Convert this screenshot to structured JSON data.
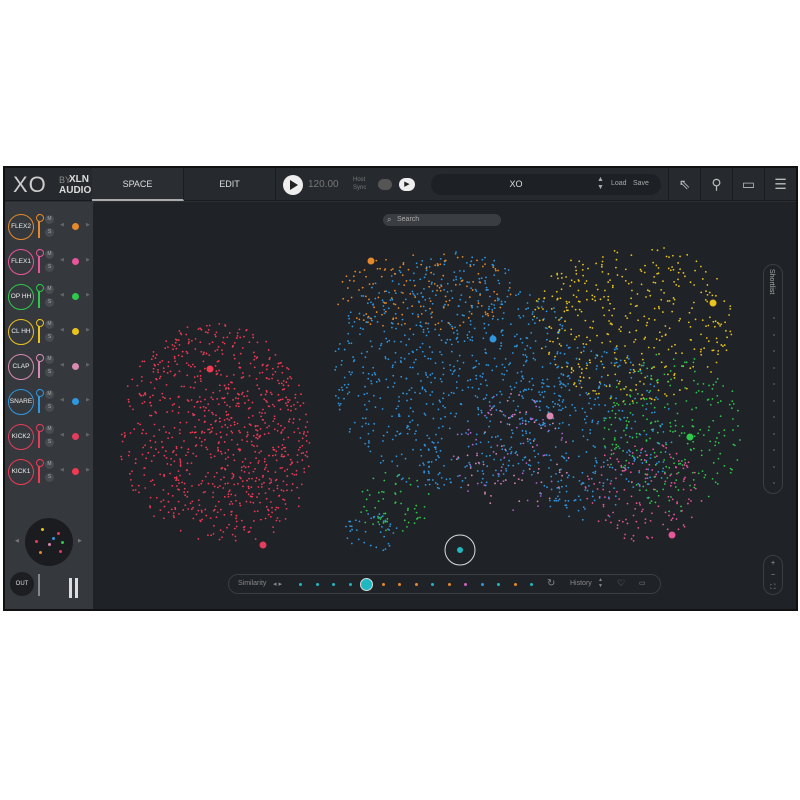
{
  "header": {
    "logo": {
      "mark": "XO",
      "by": "BY",
      "brand": "XLN",
      "brand2": "AUDIO"
    },
    "tabs": [
      {
        "label": "SPACE",
        "active": true
      },
      {
        "label": "EDIT",
        "active": false
      }
    ],
    "tempo": "120.00",
    "host_sync_label": "Host Sync",
    "preset": {
      "name": "XO",
      "load": "Load",
      "save": "Save"
    },
    "icons": [
      "arrow-up-left-icon",
      "search-icon",
      "folder-icon",
      "menu-icon"
    ]
  },
  "tracks": [
    {
      "label": "FLEX2",
      "color": "#e5892a"
    },
    {
      "label": "FLEX1",
      "color": "#e8559a"
    },
    {
      "label": "OP HH",
      "color": "#2ec84a"
    },
    {
      "label": "CL HH",
      "color": "#e9c31c"
    },
    {
      "label": "CLAP",
      "color": "#d88ab2"
    },
    {
      "label": "SNARE",
      "color": "#2f96e0"
    },
    {
      "label": "KICK2",
      "color": "#e33c5c"
    },
    {
      "label": "KICK1",
      "color": "#f03a52"
    }
  ],
  "track_buttons": {
    "mute": "M",
    "solo": "S"
  },
  "output": {
    "label": "OUT"
  },
  "search": {
    "placeholder": "Search"
  },
  "shortlist": {
    "label": "Shortlist"
  },
  "zoom": {
    "plus": "+",
    "minus": "−"
  },
  "similarity": {
    "label": "Similarity",
    "history_label": "History",
    "dots": [
      "#1fb8c0",
      "#1fb8c0",
      "#1fb8c0",
      "#1fb8c0",
      "#1fb8c0",
      "#e5892a",
      "#e5892a",
      "#e5892a",
      "#1fb8c0",
      "#e5892a",
      "#d060c0",
      "#2f96e0",
      "#1fb8c0",
      "#e5892a",
      "#1fb8c0"
    ]
  },
  "map": {
    "background": "#1f2226",
    "selected_color": "#1fb8c0"
  }
}
